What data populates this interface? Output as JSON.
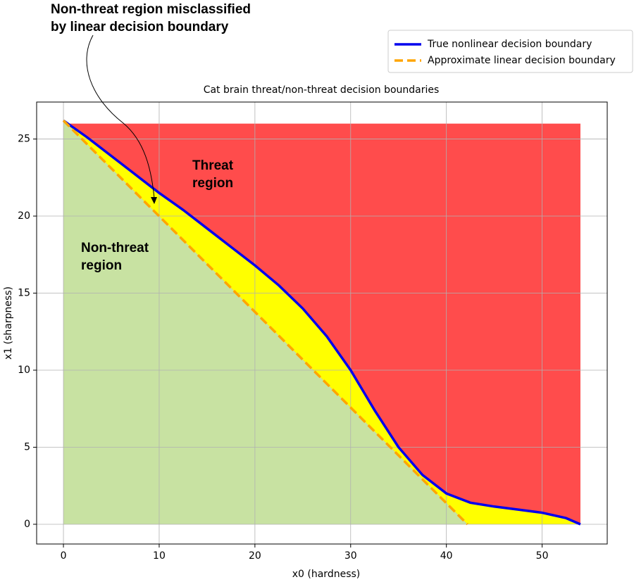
{
  "chart_data": {
    "type": "line",
    "title": "Cat brain threat/non-threat decision boundaries",
    "x_label": "x0 (hardness)",
    "y_label": "x1 (sharpness)",
    "xlim": [
      -2.8,
      56.8
    ],
    "ylim": [
      -1.28,
      27.4
    ],
    "xticks": [
      0,
      10,
      20,
      30,
      40,
      50
    ],
    "yticks": [
      0,
      5,
      10,
      15,
      20,
      25
    ],
    "grid": true,
    "legend": "upper right",
    "series": [
      {
        "name": "True nonlinear decision boundary",
        "color": "#0000ee",
        "style": "solid",
        "x": [
          0,
          2.5,
          5,
          7.5,
          10,
          12.5,
          15,
          17.5,
          20,
          22.5,
          25,
          27.5,
          30,
          32.5,
          35,
          37.5,
          40,
          42.5,
          45,
          47.5,
          50,
          52.5,
          54
        ],
        "values": [
          26.2,
          25.1,
          23.9,
          22.7,
          21.5,
          20.4,
          19.2,
          18,
          16.8,
          15.5,
          14,
          12.2,
          10,
          7.4,
          5,
          3.2,
          2,
          1.4,
          1.15,
          0.95,
          0.75,
          0.4,
          0
        ]
      },
      {
        "name": "Approximate linear decision boundary",
        "color": "#ffa500",
        "style": "dashed",
        "x": [
          0,
          42.2
        ],
        "values": [
          26.2,
          0
        ]
      }
    ],
    "threat_fill": {
      "color": "#ff4c4c",
      "x": [
        0,
        54
      ],
      "top": 26
    },
    "misclassified_fill": "#ffff00",
    "non_threat_fill": "#c8e2a2",
    "annotations": {
      "misclassified": [
        "Non-threat region misclassified",
        "by linear decision boundary"
      ],
      "threat": [
        "Threat",
        "region"
      ],
      "non_threat": [
        "Non-threat",
        "region"
      ]
    }
  }
}
